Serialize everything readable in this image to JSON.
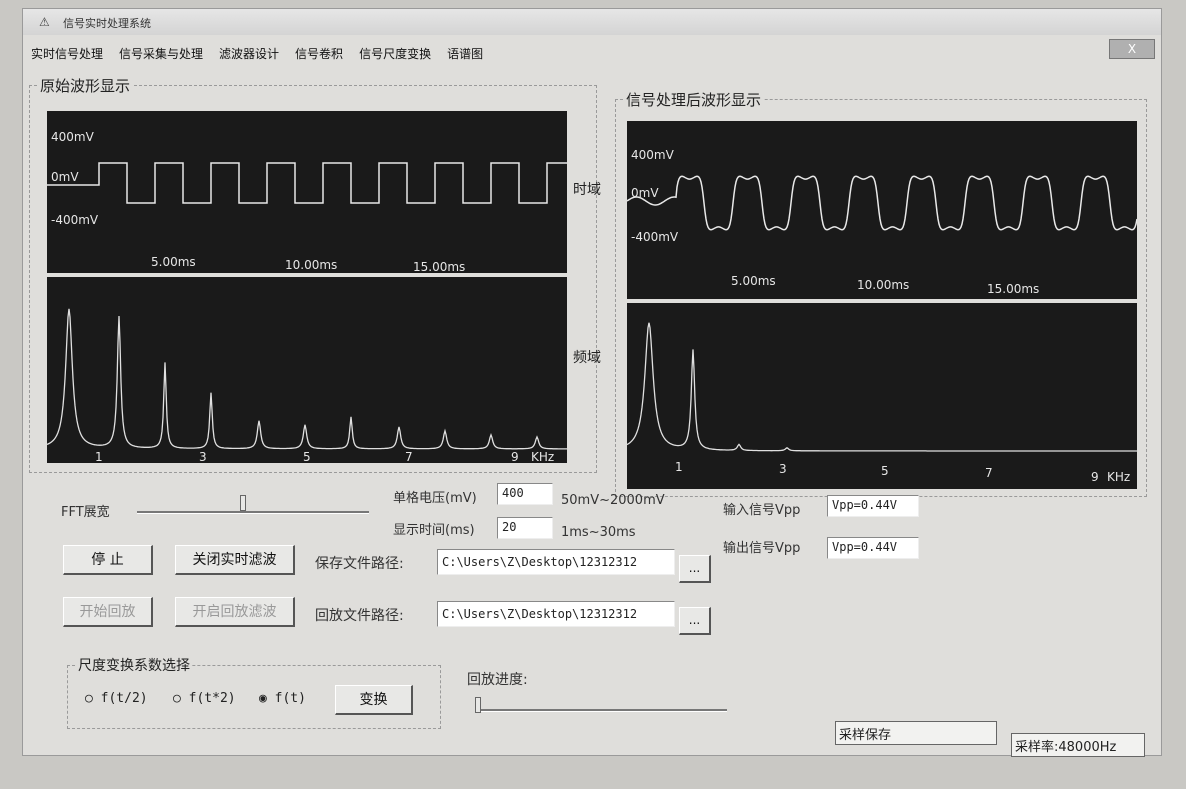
{
  "window": {
    "title": "信号实时处理系统",
    "close_label": "X"
  },
  "menu": [
    "实时信号处理",
    "信号采集与处理",
    "滤波器设计",
    "信号卷积",
    "信号尺度变换",
    "语谱图"
  ],
  "left_panel": {
    "title": "原始波形显示",
    "time_label": "时域",
    "freq_label": "频域"
  },
  "right_panel": {
    "title": "信号处理后波形显示"
  },
  "time_axis": {
    "v_top": "400mV",
    "v_mid": "0mV",
    "v_bot": "-400mV",
    "t1": "5.00ms",
    "t2": "10.00ms",
    "t3": "15.00ms"
  },
  "freq_axis": {
    "t1": "1",
    "t3": "3",
    "t5": "5",
    "t7": "7",
    "t9": "9",
    "unit": "KHz"
  },
  "controls": {
    "fft_label": "FFT展宽",
    "fft_value": 0.45,
    "volt_label": "单格电压(mV)",
    "volt_value": "400",
    "volt_range": "50mV~2000mV",
    "time_label": "显示时间(ms)",
    "time_value": "20",
    "time_range": "1ms~30ms",
    "stop_button": "停 止",
    "close_filter_button": "关闭实时滤波",
    "save_path_label": "保存文件路径:",
    "save_path_value": "C:\\Users\\Z\\Desktop\\12312312",
    "browse_label": "...",
    "start_play_button": "开始回放",
    "open_play_filter_button": "开启回放滤波",
    "play_path_label": "回放文件路径:",
    "play_path_value": "C:\\Users\\Z\\Desktop\\12312312",
    "input_signal_label": "输入信号Vpp",
    "input_signal_value": "Vpp=0.44V",
    "output_signal_label": "输出信号Vpp",
    "output_signal_value": "Vpp=0.44V",
    "scale_group_title": "尺度变换系数选择",
    "radio_1": "f(t/2)",
    "radio_2": "f(t*2)",
    "radio_3": "f(t)",
    "transform_button": "变换",
    "playback_progress_label": "回放进度:",
    "playback_progress": 0.0,
    "sample_save": "采样保存",
    "sample_rate": "采样率:48000Hz"
  }
}
